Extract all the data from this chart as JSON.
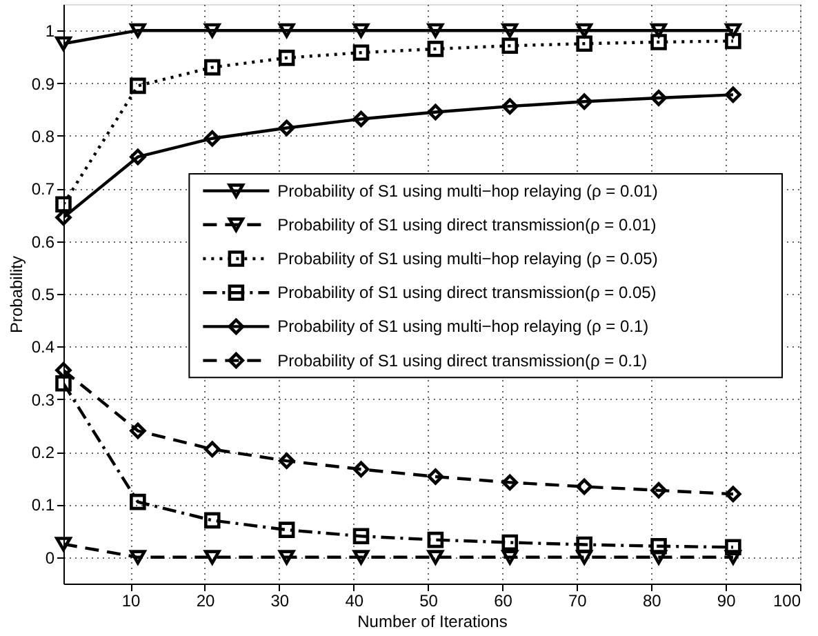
{
  "chart_data": {
    "type": "line",
    "xlabel": "Number of Iterations",
    "ylabel": "Probability",
    "x": [
      1,
      11,
      21,
      31,
      41,
      51,
      61,
      71,
      81,
      91
    ],
    "xlim": [
      1,
      100
    ],
    "xticks": [
      10,
      20,
      30,
      40,
      50,
      60,
      70,
      80,
      90,
      100
    ],
    "ylim": [
      -0.05,
      1.05
    ],
    "yticks": [
      0,
      0.1,
      0.2,
      0.3,
      0.4,
      0.5,
      0.6,
      0.7,
      0.8,
      0.9,
      1
    ],
    "grid": true,
    "legend": "right",
    "series": [
      {
        "name": "Probability of S1 using multi−hop relaying (ρ = 0.01)",
        "color": "#000000",
        "marker": "triangle",
        "line_style": "solid",
        "values": [
          0.975,
          1,
          1,
          1,
          1,
          1,
          1,
          1,
          1,
          1
        ]
      },
      {
        "name": "Probability of S1 using direct transmission(ρ = 0.01)",
        "color": "#000000",
        "marker": "triangle",
        "line_style": "dashed",
        "values": [
          0.025,
          0,
          0,
          0,
          0,
          0,
          0,
          0,
          0,
          0
        ]
      },
      {
        "name": "Probability of S1 using multi−hop relaying (ρ = 0.05)",
        "color": "#000000",
        "marker": "square",
        "line_style": "dotted",
        "values": [
          0.67,
          0.895,
          0.93,
          0.948,
          0.958,
          0.965,
          0.971,
          0.975,
          0.978,
          0.98
        ]
      },
      {
        "name": "Probability of S1 using direct transmission(ρ = 0.05)",
        "color": "#000000",
        "marker": "square",
        "line_style": "dashdot",
        "values": [
          0.33,
          0.105,
          0.07,
          0.052,
          0.04,
          0.033,
          0.028,
          0.024,
          0.021,
          0.019
        ]
      },
      {
        "name": "Probability of S1 using multi−hop relaying (ρ = 0.1)",
        "color": "#000000",
        "marker": "diamond",
        "line_style": "solid",
        "values": [
          0.645,
          0.76,
          0.795,
          0.815,
          0.832,
          0.845,
          0.856,
          0.865,
          0.872,
          0.878
        ]
      },
      {
        "name": "Probability of S1 using direct transmission(ρ = 0.1)",
        "color": "#000000",
        "marker": "diamond",
        "line_style": "dashed",
        "values": [
          0.355,
          0.24,
          0.205,
          0.183,
          0.167,
          0.153,
          0.142,
          0.134,
          0.127,
          0.12
        ]
      }
    ]
  }
}
